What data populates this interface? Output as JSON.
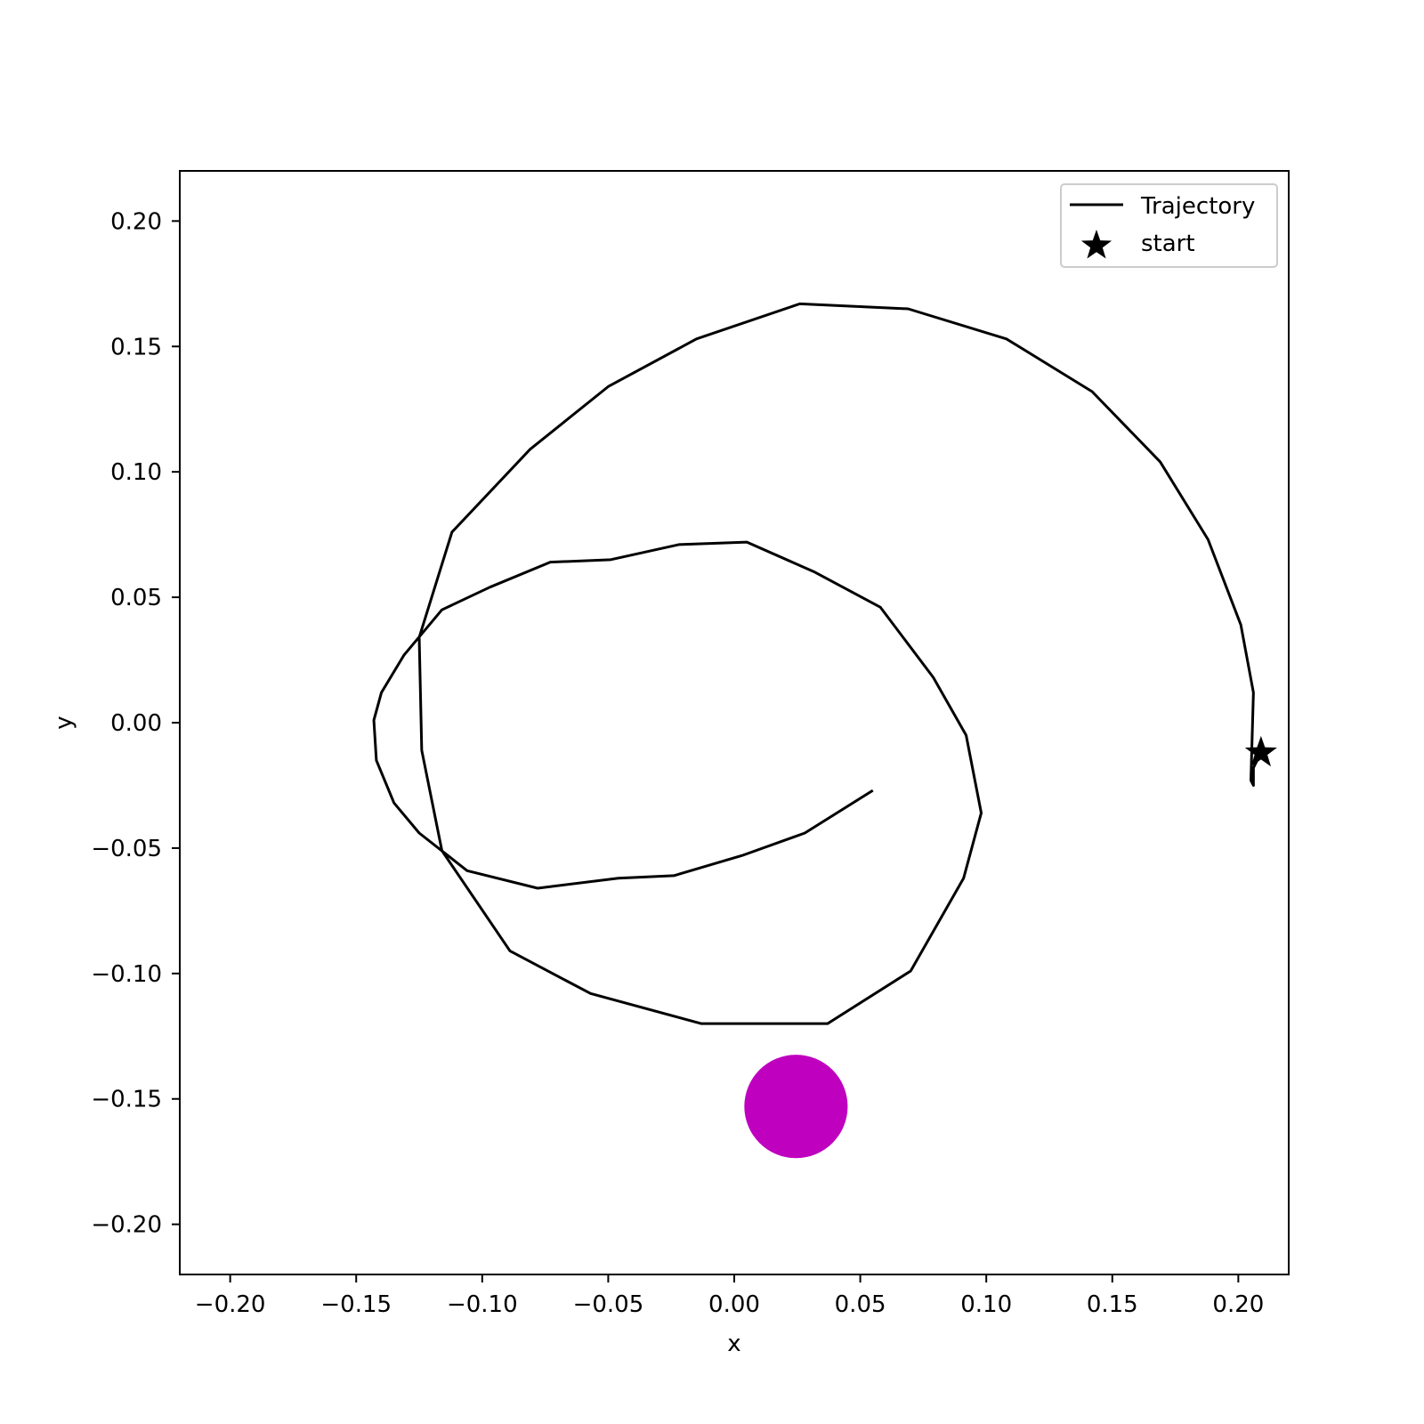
{
  "chart_data": {
    "type": "line",
    "xlabel": "x",
    "ylabel": "y",
    "xlim": [
      -0.22,
      0.22
    ],
    "ylim": [
      -0.22,
      0.22
    ],
    "xticks": [
      -0.2,
      -0.15,
      -0.1,
      -0.05,
      0.0,
      0.05,
      0.1,
      0.15,
      0.2
    ],
    "yticks": [
      -0.2,
      -0.15,
      -0.1,
      -0.05,
      0.0,
      0.05,
      0.1,
      0.15,
      0.2
    ],
    "xtick_labels": [
      "−0.20",
      "−0.15",
      "−0.10",
      "−0.05",
      "0.00",
      "0.05",
      "0.10",
      "0.15",
      "0.20"
    ],
    "ytick_labels": [
      "−0.20",
      "−0.15",
      "−0.10",
      "−0.05",
      "0.00",
      "0.05",
      "0.10",
      "0.15",
      "0.20"
    ],
    "grid": false,
    "legend": {
      "placement": "top-right",
      "entries": [
        {
          "label": "Trajectory",
          "marker": "line"
        },
        {
          "label": "start",
          "marker": "star"
        }
      ]
    },
    "series": [
      {
        "name": "Trajectory",
        "color": "#000000",
        "points": [
          [
            0.209,
            -0.012
          ],
          [
            0.206,
            -0.018
          ],
          [
            0.206,
            -0.025
          ],
          [
            0.205,
            -0.023
          ],
          [
            0.206,
            0.012
          ],
          [
            0.201,
            0.039
          ],
          [
            0.188,
            0.073
          ],
          [
            0.169,
            0.104
          ],
          [
            0.142,
            0.132
          ],
          [
            0.108,
            0.153
          ],
          [
            0.069,
            0.165
          ],
          [
            0.026,
            0.167
          ],
          [
            -0.015,
            0.153
          ],
          [
            -0.05,
            0.134
          ],
          [
            -0.081,
            0.109
          ],
          [
            -0.112,
            0.076
          ],
          [
            -0.125,
            0.034
          ],
          [
            -0.124,
            -0.011
          ],
          [
            -0.116,
            -0.051
          ],
          [
            -0.089,
            -0.091
          ],
          [
            -0.057,
            -0.108
          ],
          [
            -0.013,
            -0.12
          ],
          [
            0.037,
            -0.12
          ],
          [
            0.07,
            -0.099
          ],
          [
            0.091,
            -0.062
          ],
          [
            0.098,
            -0.036
          ],
          [
            0.092,
            -0.005
          ],
          [
            0.079,
            0.018
          ],
          [
            0.058,
            0.046
          ],
          [
            0.032,
            0.06
          ],
          [
            0.005,
            0.072
          ],
          [
            -0.022,
            0.071
          ],
          [
            -0.049,
            0.065
          ],
          [
            -0.073,
            0.064
          ],
          [
            -0.097,
            0.054
          ],
          [
            -0.116,
            0.045
          ],
          [
            -0.131,
            0.027
          ],
          [
            -0.14,
            0.012
          ],
          [
            -0.143,
            0.001
          ],
          [
            -0.142,
            -0.015
          ],
          [
            -0.135,
            -0.032
          ],
          [
            -0.125,
            -0.044
          ],
          [
            -0.106,
            -0.059
          ],
          [
            -0.078,
            -0.066
          ],
          [
            -0.046,
            -0.062
          ],
          [
            -0.024,
            -0.061
          ],
          [
            0.003,
            -0.053
          ],
          [
            0.028,
            -0.044
          ],
          [
            0.055,
            -0.027
          ]
        ]
      }
    ],
    "start": {
      "label": "start",
      "x": 0.209,
      "y": -0.012,
      "marker": "star",
      "color": "#000000"
    },
    "target": {
      "x": 0.0245,
      "y": -0.153,
      "radius": 0.0205,
      "color": "#bf00bf"
    }
  }
}
